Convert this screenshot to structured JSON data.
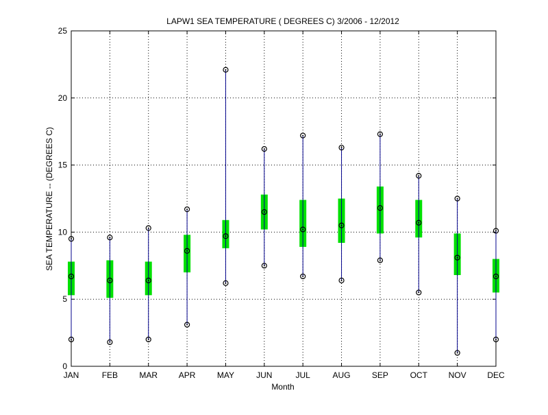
{
  "chart_data": {
    "type": "boxplot",
    "title": "LAPW1  SEA TEMPERATURE ( DEGREES C) 3/2006 - 12/2012",
    "xlabel": "Month",
    "ylabel": "SEA TEMPERATURE -- (DEGREES C)",
    "ylim": [
      0,
      25
    ],
    "yticks": [
      0,
      5,
      10,
      15,
      20,
      25
    ],
    "grid": true,
    "categories": [
      "JAN",
      "FEB",
      "MAR",
      "APR",
      "MAY",
      "JUN",
      "JUL",
      "AUG",
      "SEP",
      "OCT",
      "NOV",
      "DEC"
    ],
    "min": [
      2.0,
      1.8,
      2.0,
      3.1,
      6.2,
      7.5,
      6.7,
      6.4,
      7.9,
      5.5,
      1.0,
      2.0
    ],
    "q1": [
      5.3,
      5.1,
      5.3,
      7.0,
      8.8,
      10.2,
      8.9,
      9.2,
      9.9,
      9.6,
      6.8,
      5.5
    ],
    "median": [
      6.7,
      6.4,
      6.4,
      8.6,
      9.7,
      11.5,
      10.2,
      10.5,
      11.8,
      10.7,
      8.1,
      6.7
    ],
    "q3": [
      7.8,
      7.9,
      7.8,
      9.8,
      10.9,
      12.8,
      12.4,
      12.5,
      13.4,
      12.4,
      9.9,
      8.0
    ],
    "max": [
      9.5,
      9.6,
      10.3,
      11.7,
      22.1,
      16.2,
      17.2,
      16.3,
      17.3,
      14.2,
      12.5,
      10.1
    ],
    "colors": {
      "whisker": "#00008b",
      "box": "#00e000",
      "grid": "#000000",
      "axis": "#000000"
    }
  }
}
